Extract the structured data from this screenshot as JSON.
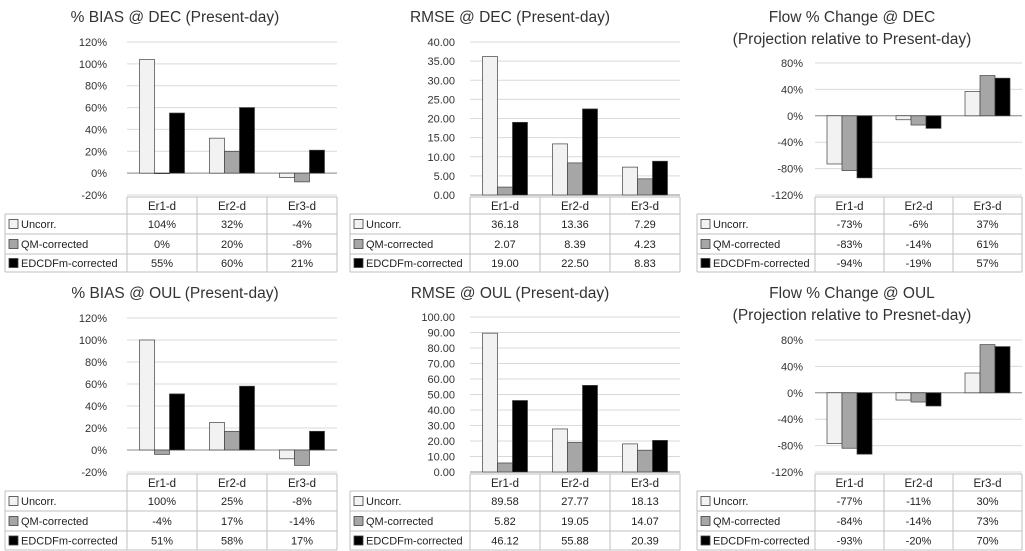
{
  "chart_data": [
    {
      "type": "bar",
      "title": "% BIAS @ DEC (Present-day)",
      "categories": [
        "Er1-d",
        "Er2-d",
        "Er3-d"
      ],
      "ylim": [
        -20,
        120
      ],
      "yticks": [
        -20,
        0,
        20,
        40,
        60,
        80,
        100,
        120
      ],
      "tick_format": "pct",
      "grid": true,
      "legend": "data-table",
      "series": [
        {
          "name": "Uncorr.",
          "values": [
            104,
            32,
            -4
          ],
          "labels": [
            "104%",
            "32%",
            "-4%"
          ]
        },
        {
          "name": "QM-corrected",
          "values": [
            0,
            20,
            -8
          ],
          "labels": [
            "0%",
            "20%",
            "-8%"
          ]
        },
        {
          "name": "EDCDFm-corrected",
          "values": [
            55,
            60,
            21
          ],
          "labels": [
            "55%",
            "60%",
            "21%"
          ]
        }
      ]
    },
    {
      "type": "bar",
      "title": "RMSE @ DEC (Present-day)",
      "categories": [
        "Er1-d",
        "Er2-d",
        "Er3-d"
      ],
      "ylim": [
        0,
        40
      ],
      "yticks": [
        0,
        5,
        10,
        15,
        20,
        25,
        30,
        35,
        40
      ],
      "tick_format": "dec2",
      "grid": true,
      "legend": "data-table",
      "series": [
        {
          "name": "Uncorr.",
          "values": [
            36.18,
            13.36,
            7.29
          ],
          "labels": [
            "36.18",
            "13.36",
            "7.29"
          ]
        },
        {
          "name": "QM-corrected",
          "values": [
            2.07,
            8.39,
            4.23
          ],
          "labels": [
            "2.07",
            "8.39",
            "4.23"
          ]
        },
        {
          "name": "EDCDFm-corrected",
          "values": [
            19.0,
            22.5,
            8.83
          ],
          "labels": [
            "19.00",
            "22.50",
            "8.83"
          ]
        }
      ]
    },
    {
      "type": "bar",
      "title": "Flow % Change @ DEC",
      "subtitle": "(Projection relative to Present-day)",
      "categories": [
        "Er1-d",
        "Er2-d",
        "Er3-d"
      ],
      "ylim": [
        -120,
        80
      ],
      "yticks": [
        -120,
        -80,
        -40,
        0,
        40,
        80
      ],
      "tick_format": "pct",
      "grid": true,
      "legend": "data-table",
      "series": [
        {
          "name": "Uncorr.",
          "values": [
            -73,
            -6,
            37
          ],
          "labels": [
            "-73%",
            "-6%",
            "37%"
          ]
        },
        {
          "name": "QM-corrected",
          "values": [
            -83,
            -14,
            61
          ],
          "labels": [
            "-83%",
            "-14%",
            "61%"
          ]
        },
        {
          "name": "EDCDFm-corrected",
          "values": [
            -94,
            -19,
            57
          ],
          "labels": [
            "-94%",
            "-19%",
            "57%"
          ]
        }
      ]
    },
    {
      "type": "bar",
      "title": "% BIAS @ OUL (Present-day)",
      "categories": [
        "Er1-d",
        "Er2-d",
        "Er3-d"
      ],
      "ylim": [
        -20,
        120
      ],
      "yticks": [
        -20,
        0,
        20,
        40,
        60,
        80,
        100,
        120
      ],
      "tick_format": "pct",
      "grid": true,
      "legend": "data-table",
      "series": [
        {
          "name": "Uncorr.",
          "values": [
            100,
            25,
            -8
          ],
          "labels": [
            "100%",
            "25%",
            "-8%"
          ]
        },
        {
          "name": "QM-corrected",
          "values": [
            -4,
            17,
            -14
          ],
          "labels": [
            "-4%",
            "17%",
            "-14%"
          ]
        },
        {
          "name": "EDCDFm-corrected",
          "values": [
            51,
            58,
            17
          ],
          "labels": [
            "51%",
            "58%",
            "17%"
          ]
        }
      ]
    },
    {
      "type": "bar",
      "title": "RMSE @ OUL (Present-day)",
      "categories": [
        "Er1-d",
        "Er2-d",
        "Er3-d"
      ],
      "ylim": [
        0,
        100
      ],
      "yticks": [
        0,
        10,
        20,
        30,
        40,
        50,
        60,
        70,
        80,
        90,
        100
      ],
      "tick_format": "dec2",
      "grid": true,
      "legend": "data-table",
      "series": [
        {
          "name": "Uncorr.",
          "values": [
            89.58,
            27.77,
            18.13
          ],
          "labels": [
            "89.58",
            "27.77",
            "18.13"
          ]
        },
        {
          "name": "QM-corrected",
          "values": [
            5.82,
            19.05,
            14.07
          ],
          "labels": [
            "5.82",
            "19.05",
            "14.07"
          ]
        },
        {
          "name": "EDCDFm-corrected",
          "values": [
            46.12,
            55.88,
            20.39
          ],
          "labels": [
            "46.12",
            "55.88",
            "20.39"
          ]
        }
      ]
    },
    {
      "type": "bar",
      "title": "Flow % Change @ OUL",
      "subtitle": "(Projection relative to Presnet-day)",
      "categories": [
        "Er1-d",
        "Er2-d",
        "Er3-d"
      ],
      "ylim": [
        -120,
        80
      ],
      "yticks": [
        -120,
        -80,
        -40,
        0,
        40,
        80
      ],
      "tick_format": "pct",
      "grid": true,
      "legend": "data-table",
      "series": [
        {
          "name": "Uncorr.",
          "values": [
            -77,
            -11,
            30
          ],
          "labels": [
            "-77%",
            "-11%",
            "30%"
          ]
        },
        {
          "name": "QM-corrected",
          "values": [
            -84,
            -14,
            73
          ],
          "labels": [
            "-84%",
            "-14%",
            "73%"
          ]
        },
        {
          "name": "EDCDFm-corrected",
          "values": [
            -93,
            -20,
            70
          ],
          "labels": [
            "-93%",
            "-20%",
            "70%"
          ]
        }
      ]
    }
  ],
  "colors": {
    "series": [
      "#f2f2f2",
      "#a6a6a6",
      "#000000"
    ],
    "bar_outline": "#404040",
    "grid": "#d9d9d9",
    "table_border": "#bfbfbf",
    "text": "#404040"
  }
}
